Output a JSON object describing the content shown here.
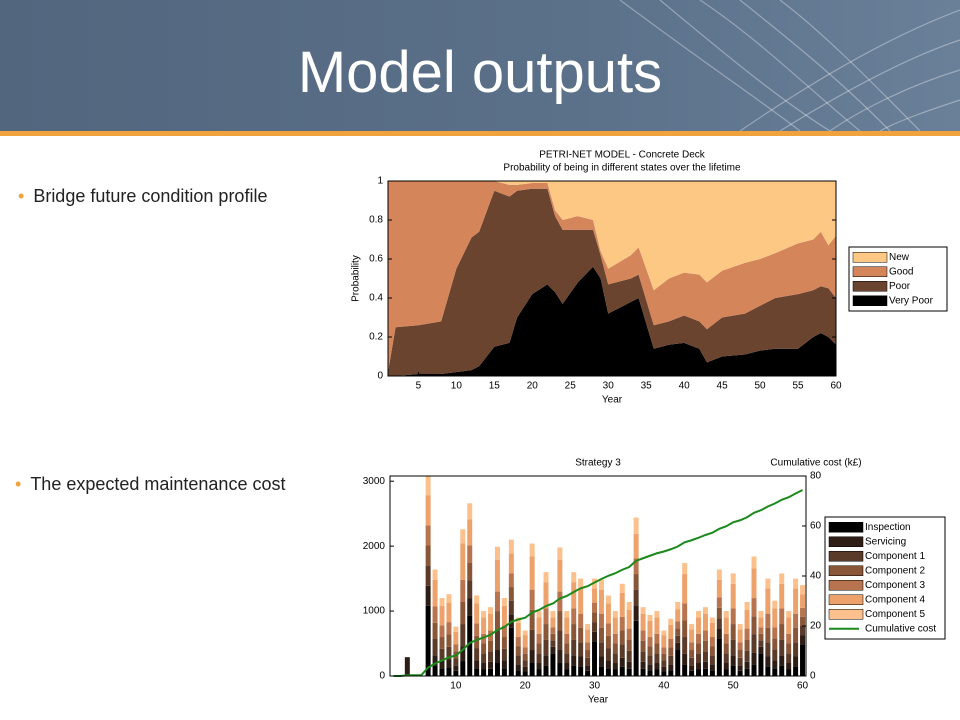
{
  "header": {
    "title": "Model outputs"
  },
  "bullets": [
    "Bridge future condition profile",
    "The expected maintenance cost"
  ],
  "chart_data": [
    {
      "type": "area",
      "title": "PETRI-NET MODEL - Concrete Deck",
      "subtitle": "Probability of being in different states over the lifetime",
      "xlabel": "Year",
      "ylabel": "Probability",
      "x": [
        1,
        2,
        5,
        8,
        10,
        12,
        13,
        15,
        17,
        18,
        20,
        22,
        23,
        24,
        26,
        28,
        29,
        30,
        33,
        34,
        36,
        38,
        40,
        42,
        43,
        45,
        48,
        50,
        52,
        55,
        57,
        58,
        59,
        60
      ],
      "xlim": [
        1,
        60
      ],
      "xticks": [
        5,
        10,
        15,
        20,
        25,
        30,
        35,
        40,
        45,
        50,
        55,
        60
      ],
      "ylim": [
        0,
        1
      ],
      "yticks": [
        0,
        0.2,
        0.4,
        0.6,
        0.8,
        1
      ],
      "series": [
        {
          "name": "Very Poor",
          "color": "#000000",
          "values": [
            0,
            0,
            0.01,
            0.01,
            0.02,
            0.03,
            0.05,
            0.15,
            0.17,
            0.3,
            0.42,
            0.47,
            0.43,
            0.37,
            0.48,
            0.56,
            0.5,
            0.32,
            0.38,
            0.4,
            0.14,
            0.16,
            0.17,
            0.14,
            0.07,
            0.1,
            0.11,
            0.13,
            0.14,
            0.14,
            0.2,
            0.22,
            0.2,
            0.16
          ]
        },
        {
          "name": "Poor",
          "color": "#6b4430",
          "values": [
            0.02,
            0.25,
            0.25,
            0.27,
            0.53,
            0.68,
            0.69,
            0.8,
            0.75,
            0.65,
            0.54,
            0.49,
            0.39,
            0.38,
            0.27,
            0.19,
            0.12,
            0.15,
            0.12,
            0.12,
            0.12,
            0.12,
            0.14,
            0.14,
            0.17,
            0.2,
            0.21,
            0.23,
            0.26,
            0.28,
            0.24,
            0.24,
            0.25,
            0.24
          ]
        },
        {
          "name": "Good",
          "color": "#d4855a",
          "values": [
            0.98,
            0.75,
            0.74,
            0.72,
            0.45,
            0.29,
            0.26,
            0.05,
            0.06,
            0.03,
            0.03,
            0.03,
            0.03,
            0.05,
            0.07,
            0.05,
            0.02,
            0.08,
            0.12,
            0.14,
            0.18,
            0.22,
            0.22,
            0.24,
            0.24,
            0.24,
            0.26,
            0.24,
            0.23,
            0.26,
            0.26,
            0.28,
            0.22,
            0.32
          ]
        },
        {
          "name": "New",
          "color": "#fcc884",
          "values": [
            0,
            0,
            0,
            0,
            0,
            0,
            0,
            0,
            0.02,
            0.02,
            0.01,
            0.01,
            0.15,
            0.2,
            0.18,
            0.2,
            0.36,
            0.45,
            0.38,
            0.34,
            0.56,
            0.5,
            0.47,
            0.48,
            0.52,
            0.46,
            0.42,
            0.4,
            0.37,
            0.32,
            0.3,
            0.26,
            0.33,
            0.28
          ]
        }
      ]
    },
    {
      "type": "bar",
      "stacked": true,
      "title": "Strategy 3",
      "xlabel": "Year",
      "y2label": "Cumulative cost (k£)",
      "x": [
        1,
        2,
        3,
        4,
        5,
        6,
        7,
        8,
        9,
        10,
        11,
        12,
        13,
        14,
        15,
        16,
        17,
        18,
        19,
        20,
        21,
        22,
        23,
        24,
        25,
        26,
        27,
        28,
        29,
        30,
        31,
        32,
        33,
        34,
        35,
        36,
        37,
        38,
        39,
        40,
        41,
        42,
        43,
        44,
        45,
        46,
        47,
        48,
        49,
        50,
        51,
        52,
        53,
        54,
        55,
        56,
        57,
        58,
        59,
        60
      ],
      "xlim": [
        0.5,
        60.5
      ],
      "xticks": [
        10,
        20,
        30,
        40,
        50,
        60
      ],
      "ylim": [
        0,
        3080
      ],
      "yticks": [
        0,
        1000,
        2000,
        3000
      ],
      "y2lim": [
        0,
        80
      ],
      "y2ticks": [
        0,
        20,
        40,
        60,
        80
      ],
      "series": [
        {
          "name": "Inspection",
          "color": "#000000",
          "values": [
            0,
            0,
            0,
            0,
            0,
            1080,
            160,
            120,
            130,
            80,
            230,
            930,
            120,
            100,
            110,
            200,
            120,
            740,
            90,
            70,
            200,
            100,
            160,
            350,
            200,
            100,
            160,
            150,
            80,
            530,
            150,
            120,
            100,
            140,
            110,
            850,
            110,
            90,
            100,
            70,
            90,
            400,
            170,
            80,
            100,
            110,
            90,
            570,
            100,
            160,
            80,
            110,
            180,
            350,
            150,
            120,
            160,
            100,
            150,
            490
          ]
        },
        {
          "name": "Servicing",
          "color": "#2e1d14",
          "values": [
            0,
            0,
            290,
            0,
            0,
            310,
            160,
            120,
            130,
            80,
            230,
            270,
            120,
            100,
            110,
            200,
            120,
            210,
            90,
            70,
            200,
            100,
            160,
            100,
            200,
            100,
            160,
            150,
            80,
            150,
            150,
            120,
            100,
            140,
            110,
            240,
            110,
            90,
            100,
            70,
            90,
            110,
            170,
            80,
            100,
            110,
            90,
            160,
            100,
            160,
            80,
            110,
            180,
            100,
            150,
            120,
            160,
            100,
            150,
            140
          ]
        },
        {
          "name": "Component 1",
          "color": "#5a3a28",
          "values": [
            0,
            0,
            0,
            0,
            0,
            310,
            250,
            180,
            190,
            110,
            340,
            270,
            190,
            150,
            160,
            300,
            180,
            210,
            140,
            100,
            310,
            150,
            240,
            100,
            300,
            150,
            240,
            220,
            120,
            150,
            220,
            190,
            150,
            210,
            170,
            240,
            160,
            140,
            150,
            100,
            130,
            110,
            260,
            120,
            150,
            160,
            140,
            160,
            150,
            240,
            120,
            170,
            280,
            100,
            220,
            170,
            240,
            150,
            220,
            140
          ]
        },
        {
          "name": "Component 2",
          "color": "#8a5638",
          "values": [
            0,
            0,
            0,
            0,
            0,
            310,
            250,
            180,
            190,
            110,
            340,
            270,
            190,
            150,
            160,
            300,
            180,
            210,
            140,
            100,
            310,
            150,
            240,
            100,
            300,
            150,
            240,
            220,
            120,
            150,
            220,
            190,
            150,
            210,
            170,
            240,
            160,
            140,
            150,
            100,
            130,
            110,
            260,
            120,
            150,
            160,
            140,
            160,
            150,
            240,
            120,
            170,
            280,
            100,
            220,
            170,
            240,
            150,
            220,
            140
          ]
        },
        {
          "name": "Component 3",
          "color": "#b8744e",
          "values": [
            0,
            0,
            0,
            0,
            0,
            310,
            250,
            180,
            190,
            110,
            340,
            270,
            190,
            150,
            160,
            300,
            180,
            210,
            140,
            100,
            310,
            150,
            240,
            100,
            300,
            150,
            240,
            220,
            120,
            150,
            220,
            190,
            150,
            210,
            170,
            240,
            160,
            140,
            150,
            100,
            130,
            110,
            260,
            120,
            150,
            160,
            140,
            160,
            150,
            240,
            120,
            170,
            280,
            100,
            220,
            170,
            240,
            150,
            220,
            140
          ]
        },
        {
          "name": "Component 4",
          "color": "#eda26c",
          "values": [
            0,
            0,
            0,
            0,
            0,
            460,
            410,
            300,
            300,
            190,
            560,
            400,
            310,
            250,
            260,
            490,
            300,
            310,
            220,
            190,
            510,
            250,
            400,
            150,
            490,
            250,
            400,
            390,
            200,
            220,
            370,
            310,
            250,
            370,
            290,
            380,
            260,
            250,
            250,
            190,
            220,
            190,
            450,
            200,
            250,
            260,
            220,
            270,
            250,
            380,
            200,
            290,
            460,
            150,
            390,
            290,
            380,
            250,
            390,
            210
          ]
        },
        {
          "name": "Component 5",
          "color": "#fcc08c",
          "values": [
            0,
            0,
            0,
            0,
            0,
            300,
            160,
            120,
            130,
            80,
            220,
            250,
            120,
            100,
            100,
            200,
            120,
            210,
            80,
            70,
            200,
            100,
            160,
            100,
            190,
            100,
            160,
            150,
            80,
            150,
            150,
            120,
            100,
            140,
            120,
            250,
            100,
            90,
            100,
            70,
            90,
            110,
            170,
            80,
            100,
            100,
            80,
            160,
            100,
            160,
            80,
            120,
            180,
            100,
            150,
            120,
            160,
            100,
            150,
            140
          ]
        },
        {
          "name": "Cumulative cost",
          "type": "line",
          "axis": "y2",
          "color": "#1a8a1a",
          "values": [
            0,
            0,
            0.3,
            0.3,
            0.3,
            3.4,
            5.0,
            6.2,
            7.5,
            8.2,
            10.5,
            13.2,
            14.4,
            15.4,
            16.5,
            18.4,
            19.6,
            21.7,
            22.6,
            23.3,
            25.4,
            26.4,
            28.0,
            29.0,
            31.0,
            32.0,
            33.6,
            35.1,
            35.9,
            37.4,
            38.8,
            40.1,
            41.1,
            42.5,
            43.6,
            46.1,
            47.1,
            48.1,
            49.1,
            49.8,
            50.7,
            51.8,
            53.5,
            54.3,
            55.3,
            56.4,
            57.3,
            58.9,
            59.9,
            61.5,
            62.3,
            63.5,
            65.3,
            66.3,
            67.8,
            69.0,
            70.5,
            71.5,
            73.0,
            74.4
          ]
        }
      ]
    }
  ]
}
